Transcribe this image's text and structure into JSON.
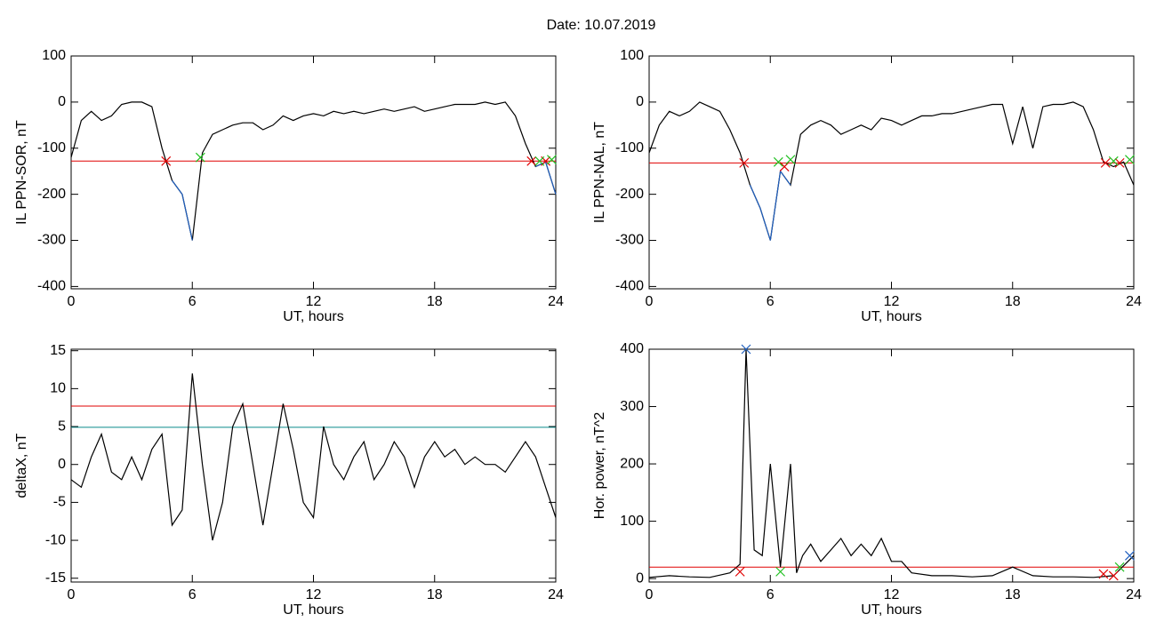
{
  "title": "Date:  10.07.2019",
  "chart_data": [
    {
      "type": "line",
      "ylabel": "IL PPN-SOR, nT",
      "xlabel": "UT, hours",
      "xlim": [
        0,
        24
      ],
      "xticks": [
        0,
        6,
        12,
        18,
        24
      ],
      "ylim": [
        -405,
        100
      ],
      "yticks": [
        100,
        0,
        -100,
        -200,
        -300,
        -400
      ],
      "x": [
        0,
        0.5,
        1,
        1.5,
        2,
        2.5,
        3,
        3.5,
        4,
        4.5,
        5,
        5.5,
        6,
        6.5,
        7,
        7.5,
        8,
        8.5,
        9,
        9.5,
        10,
        10.5,
        11,
        11.5,
        12,
        12.5,
        13,
        13.5,
        14,
        14.5,
        15,
        15.5,
        16,
        16.5,
        17,
        17.5,
        18,
        18.5,
        19,
        19.5,
        20,
        20.5,
        21,
        21.5,
        22,
        22.5,
        23,
        23.5,
        24
      ],
      "series": [
        {
          "color": "#000000",
          "values": [
            -120,
            -40,
            -20,
            -40,
            -30,
            -5,
            0,
            0,
            -10,
            -100,
            -170,
            -200,
            -300,
            -110,
            -70,
            -60,
            -50,
            -45,
            -45,
            -60,
            -50,
            -30,
            -40,
            -30,
            -25,
            -30,
            -20,
            -25,
            -20,
            -25,
            -20,
            -15,
            -20,
            -15,
            -10,
            -20,
            -15,
            -10,
            -5,
            -5,
            -5,
            0,
            -5,
            0,
            -30,
            -90,
            -140,
            -130,
            -200
          ]
        },
        {
          "color": "#1f5fbf",
          "values": [
            null,
            null,
            null,
            null,
            null,
            null,
            null,
            null,
            null,
            null,
            -170,
            -200,
            -300,
            null,
            null,
            null,
            null,
            null,
            null,
            null,
            null,
            null,
            null,
            null,
            null,
            null,
            null,
            null,
            null,
            null,
            null,
            null,
            null,
            null,
            null,
            null,
            null,
            null,
            null,
            null,
            null,
            null,
            null,
            null,
            null,
            null,
            -140,
            -130,
            -200
          ]
        }
      ],
      "hlines": [
        {
          "value": -128,
          "color": "#e00000"
        }
      ],
      "markers": [
        {
          "color": "#e00000",
          "x": [
            4.7,
            22.8,
            23.5
          ],
          "y": [
            -128,
            -128,
            -128
          ]
        },
        {
          "color": "#20c020",
          "x": [
            6.4,
            23.2,
            23.8
          ],
          "y": [
            -120,
            -128,
            -125
          ]
        }
      ]
    },
    {
      "type": "line",
      "ylabel": "IL PPN-NAL, nT",
      "xlabel": "UT, hours",
      "xlim": [
        0,
        24
      ],
      "xticks": [
        0,
        6,
        12,
        18,
        24
      ],
      "ylim": [
        -405,
        100
      ],
      "yticks": [
        100,
        0,
        -100,
        -200,
        -300,
        -400
      ],
      "x": [
        0,
        0.5,
        1,
        1.5,
        2,
        2.5,
        3,
        3.5,
        4,
        4.5,
        5,
        5.5,
        6,
        6.5,
        7,
        7.5,
        8,
        8.5,
        9,
        9.5,
        10,
        10.5,
        11,
        11.5,
        12,
        12.5,
        13,
        13.5,
        14,
        14.5,
        15,
        15.5,
        16,
        16.5,
        17,
        17.5,
        18,
        18.5,
        19,
        19.5,
        20,
        20.5,
        21,
        21.5,
        22,
        22.5,
        23,
        23.5,
        24
      ],
      "series": [
        {
          "color": "#000000",
          "values": [
            -110,
            -50,
            -20,
            -30,
            -20,
            0,
            -10,
            -20,
            -60,
            -110,
            -180,
            -230,
            -300,
            -150,
            -180,
            -70,
            -50,
            -40,
            -50,
            -70,
            -60,
            -50,
            -60,
            -35,
            -40,
            -50,
            -40,
            -30,
            -30,
            -25,
            -25,
            -20,
            -15,
            -10,
            -5,
            -5,
            -90,
            -10,
            -100,
            -10,
            -5,
            -5,
            0,
            -10,
            -60,
            -130,
            -140,
            -130,
            -180
          ]
        },
        {
          "color": "#1f5fbf",
          "values": [
            null,
            null,
            null,
            null,
            null,
            null,
            null,
            null,
            null,
            null,
            -180,
            -230,
            -300,
            -150,
            -180,
            null,
            null,
            null,
            null,
            null,
            null,
            null,
            null,
            null,
            null,
            null,
            null,
            null,
            null,
            null,
            null,
            null,
            null,
            null,
            null,
            null,
            null,
            null,
            null,
            null,
            null,
            null,
            null,
            null,
            null,
            null,
            -140,
            null,
            -180
          ]
        }
      ],
      "hlines": [
        {
          "value": -132,
          "color": "#e00000"
        }
      ],
      "markers": [
        {
          "color": "#e00000",
          "x": [
            4.7,
            6.7,
            22.6,
            23.3
          ],
          "y": [
            -132,
            -140,
            -132,
            -132
          ]
        },
        {
          "color": "#20c020",
          "x": [
            6.4,
            7.0,
            23.0,
            23.8
          ],
          "y": [
            -130,
            -125,
            -128,
            -125
          ]
        }
      ]
    },
    {
      "type": "line",
      "ylabel": "deltaX, nT",
      "xlabel": "UT, hours",
      "xlim": [
        0,
        24
      ],
      "xticks": [
        0,
        6,
        12,
        18,
        24
      ],
      "ylim": [
        -15.5,
        15.2
      ],
      "yticks": [
        15,
        10,
        5,
        0,
        -5,
        -10,
        -15
      ],
      "x": [
        0,
        0.5,
        1,
        1.5,
        2,
        2.5,
        3,
        3.5,
        4,
        4.5,
        5,
        5.5,
        6,
        6.5,
        7,
        7.5,
        8,
        8.5,
        9,
        9.5,
        10,
        10.5,
        11,
        11.5,
        12,
        12.5,
        13,
        13.5,
        14,
        14.5,
        15,
        15.5,
        16,
        16.5,
        17,
        17.5,
        18,
        18.5,
        19,
        19.5,
        20,
        20.5,
        21,
        21.5,
        22,
        22.5,
        23,
        23.5,
        24
      ],
      "series": [
        {
          "color": "#000000",
          "values": [
            -2,
            -3,
            1,
            4,
            -1,
            -2,
            1,
            -2,
            2,
            4,
            -8,
            -6,
            12,
            0,
            -10,
            -5,
            5,
            8,
            0,
            -8,
            0,
            8,
            2,
            -5,
            -7,
            5,
            0,
            -2,
            1,
            3,
            -2,
            0,
            3,
            1,
            -3,
            1,
            3,
            1,
            2,
            0,
            1,
            0,
            0,
            -1,
            1,
            3,
            1,
            -3,
            -7
          ]
        }
      ],
      "hlines": [
        {
          "value": 7.7,
          "color": "#e00000"
        },
        {
          "value": 4.9,
          "color": "#0a8a8a"
        }
      ],
      "markers": []
    },
    {
      "type": "line",
      "ylabel": "Hor. power, nT^2",
      "xlabel": "UT, hours",
      "xlim": [
        0,
        24
      ],
      "xticks": [
        0,
        6,
        12,
        18,
        24
      ],
      "ylim": [
        -6,
        400
      ],
      "yticks": [
        400,
        300,
        200,
        100,
        0
      ],
      "x": [
        0,
        1,
        2,
        3,
        4,
        4.5,
        4.8,
        5.2,
        5.6,
        6,
        6.5,
        7,
        7.3,
        7.6,
        8,
        8.5,
        9,
        9.5,
        10,
        10.5,
        11,
        11.5,
        12,
        12.5,
        13,
        14,
        15,
        16,
        17,
        18,
        19,
        20,
        21,
        22,
        23,
        24
      ],
      "series": [
        {
          "color": "#000000",
          "values": [
            2,
            5,
            3,
            2,
            10,
            25,
            400,
            50,
            40,
            200,
            20,
            200,
            10,
            40,
            60,
            30,
            50,
            70,
            40,
            60,
            40,
            70,
            30,
            30,
            10,
            5,
            5,
            3,
            5,
            20,
            5,
            3,
            3,
            2,
            5,
            40
          ]
        }
      ],
      "hlines": [
        {
          "value": 20,
          "color": "#e00000"
        }
      ],
      "markers": [
        {
          "color": "#e00000",
          "x": [
            4.5,
            22.5,
            23.0
          ],
          "y": [
            12,
            8,
            5
          ]
        },
        {
          "color": "#1f5fbf",
          "x": [
            4.8,
            23.8
          ],
          "y": [
            400,
            40
          ]
        },
        {
          "color": "#20c020",
          "x": [
            6.5,
            23.3
          ],
          "y": [
            12,
            20
          ]
        }
      ]
    }
  ]
}
